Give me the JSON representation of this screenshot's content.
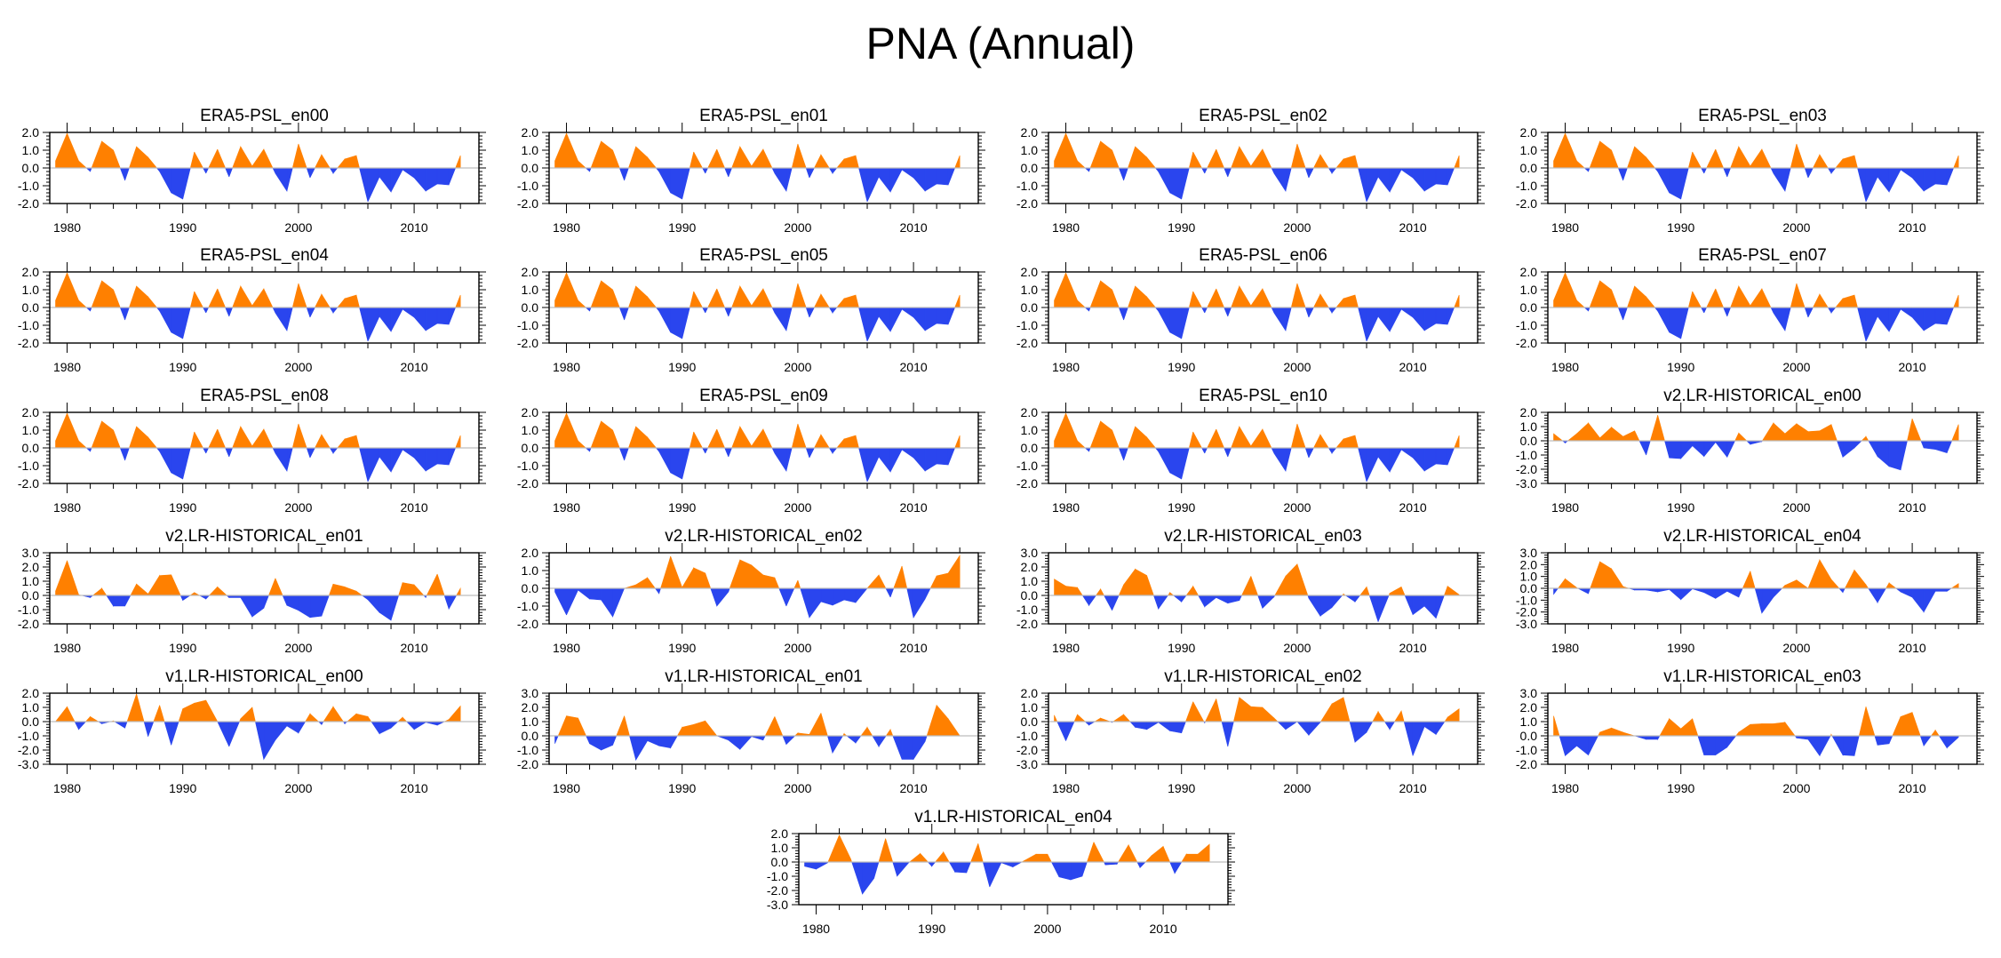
{
  "title": "PNA (Annual)",
  "colors": {
    "positive": "#ff8000",
    "negative": "#2a45ee",
    "zero_line": "#bdbdbd",
    "axis": "#000000"
  },
  "chart_data": {
    "type": "area",
    "title": "PNA (Annual)",
    "years": [
      1979,
      1980,
      1981,
      1982,
      1983,
      1984,
      1985,
      1986,
      1987,
      1988,
      1989,
      1990,
      1991,
      1992,
      1993,
      1994,
      1995,
      1996,
      1997,
      1998,
      1999,
      2000,
      2001,
      2002,
      2003,
      2004,
      2005,
      2006,
      2007,
      2008,
      2009,
      2010,
      2011,
      2012,
      2013,
      2014
    ],
    "xlim": [
      1978.5,
      2015.6
    ],
    "x_ticks": [
      1980,
      1990,
      2000,
      2010
    ],
    "x_tick_labels": [
      "1980",
      "1990",
      "2000",
      "2010"
    ],
    "xlabel": "",
    "ylabel": "",
    "grid": false,
    "fill_rule": "above zero orange, below zero blue",
    "panels": [
      {
        "name": "ERA5-PSL_en00",
        "ylim": [
          -2,
          2
        ],
        "y_ticks": [
          "2.0",
          "1.0",
          "0.0",
          "-1.0",
          "-2.0"
        ],
        "values": [
          0.4,
          1.95,
          0.4,
          -0.2,
          1.5,
          1.0,
          -0.7,
          1.2,
          0.6,
          -0.2,
          -1.4,
          -1.75,
          0.9,
          -0.3,
          1.05,
          -0.5,
          1.2,
          0.1,
          1.05,
          -0.3,
          -1.3,
          1.35,
          -0.55,
          0.75,
          -0.3,
          0.5,
          0.7,
          -1.9,
          -0.5,
          -1.35,
          -0.1,
          -0.55,
          -1.3,
          -0.9,
          -0.95,
          0.7
        ]
      },
      {
        "name": "ERA5-PSL_en01",
        "ylim": [
          -2,
          2
        ],
        "y_ticks": [
          "2.0",
          "1.0",
          "0.0",
          "-1.0",
          "-2.0"
        ],
        "values": [
          0.4,
          1.95,
          0.4,
          -0.2,
          1.5,
          1.0,
          -0.7,
          1.2,
          0.6,
          -0.2,
          -1.4,
          -1.75,
          0.9,
          -0.3,
          1.05,
          -0.5,
          1.2,
          0.1,
          1.05,
          -0.3,
          -1.3,
          1.35,
          -0.55,
          0.75,
          -0.3,
          0.5,
          0.7,
          -1.9,
          -0.5,
          -1.35,
          -0.1,
          -0.55,
          -1.3,
          -0.9,
          -0.95,
          0.7
        ]
      },
      {
        "name": "ERA5-PSL_en02",
        "ylim": [
          -2,
          2
        ],
        "y_ticks": [
          "2.0",
          "1.0",
          "0.0",
          "-1.0",
          "-2.0"
        ],
        "values": [
          0.4,
          1.95,
          0.4,
          -0.2,
          1.5,
          1.0,
          -0.7,
          1.2,
          0.6,
          -0.2,
          -1.4,
          -1.75,
          0.9,
          -0.3,
          1.05,
          -0.5,
          1.2,
          0.1,
          1.05,
          -0.3,
          -1.3,
          1.35,
          -0.55,
          0.75,
          -0.3,
          0.5,
          0.7,
          -1.9,
          -0.5,
          -1.35,
          -0.1,
          -0.55,
          -1.3,
          -0.9,
          -0.95,
          0.7
        ]
      },
      {
        "name": "ERA5-PSL_en03",
        "ylim": [
          -2,
          2
        ],
        "y_ticks": [
          "2.0",
          "1.0",
          "0.0",
          "-1.0",
          "-2.0"
        ],
        "values": [
          0.4,
          1.95,
          0.4,
          -0.2,
          1.5,
          1.0,
          -0.7,
          1.2,
          0.6,
          -0.2,
          -1.4,
          -1.75,
          0.9,
          -0.3,
          1.05,
          -0.5,
          1.2,
          0.1,
          1.05,
          -0.3,
          -1.3,
          1.35,
          -0.55,
          0.75,
          -0.3,
          0.5,
          0.7,
          -1.9,
          -0.5,
          -1.35,
          -0.1,
          -0.55,
          -1.3,
          -0.9,
          -0.95,
          0.7
        ]
      },
      {
        "name": "ERA5-PSL_en04",
        "ylim": [
          -2,
          2
        ],
        "y_ticks": [
          "2.0",
          "1.0",
          "0.0",
          "-1.0",
          "-2.0"
        ],
        "values": [
          0.4,
          1.95,
          0.4,
          -0.2,
          1.5,
          1.0,
          -0.7,
          1.2,
          0.6,
          -0.2,
          -1.4,
          -1.75,
          0.9,
          -0.3,
          1.05,
          -0.5,
          1.2,
          0.1,
          1.05,
          -0.3,
          -1.3,
          1.35,
          -0.55,
          0.75,
          -0.3,
          0.5,
          0.7,
          -1.9,
          -0.5,
          -1.35,
          -0.1,
          -0.55,
          -1.3,
          -0.9,
          -0.95,
          0.7
        ]
      },
      {
        "name": "ERA5-PSL_en05",
        "ylim": [
          -2,
          2
        ],
        "y_ticks": [
          "2.0",
          "1.0",
          "0.0",
          "-1.0",
          "-2.0"
        ],
        "values": [
          0.4,
          1.95,
          0.4,
          -0.2,
          1.5,
          1.0,
          -0.7,
          1.2,
          0.6,
          -0.2,
          -1.4,
          -1.75,
          0.9,
          -0.3,
          1.05,
          -0.5,
          1.2,
          0.1,
          1.05,
          -0.3,
          -1.3,
          1.35,
          -0.55,
          0.75,
          -0.3,
          0.5,
          0.7,
          -1.9,
          -0.5,
          -1.35,
          -0.1,
          -0.55,
          -1.3,
          -0.9,
          -0.95,
          0.7
        ]
      },
      {
        "name": "ERA5-PSL_en06",
        "ylim": [
          -2,
          2
        ],
        "y_ticks": [
          "2.0",
          "1.0",
          "0.0",
          "-1.0",
          "-2.0"
        ],
        "values": [
          0.4,
          1.95,
          0.4,
          -0.2,
          1.5,
          1.0,
          -0.7,
          1.2,
          0.6,
          -0.2,
          -1.4,
          -1.75,
          0.9,
          -0.3,
          1.05,
          -0.5,
          1.2,
          0.1,
          1.05,
          -0.3,
          -1.3,
          1.35,
          -0.55,
          0.75,
          -0.3,
          0.5,
          0.7,
          -1.9,
          -0.5,
          -1.35,
          -0.1,
          -0.55,
          -1.3,
          -0.9,
          -0.95,
          0.7
        ]
      },
      {
        "name": "ERA5-PSL_en07",
        "ylim": [
          -2,
          2
        ],
        "y_ticks": [
          "2.0",
          "1.0",
          "0.0",
          "-1.0",
          "-2.0"
        ],
        "values": [
          0.4,
          1.95,
          0.4,
          -0.2,
          1.5,
          1.0,
          -0.7,
          1.2,
          0.6,
          -0.2,
          -1.4,
          -1.75,
          0.9,
          -0.3,
          1.05,
          -0.5,
          1.2,
          0.1,
          1.05,
          -0.3,
          -1.3,
          1.35,
          -0.55,
          0.75,
          -0.3,
          0.5,
          0.7,
          -1.9,
          -0.5,
          -1.35,
          -0.1,
          -0.55,
          -1.3,
          -0.9,
          -0.95,
          0.7
        ]
      },
      {
        "name": "ERA5-PSL_en08",
        "ylim": [
          -2,
          2
        ],
        "y_ticks": [
          "2.0",
          "1.0",
          "0.0",
          "-1.0",
          "-2.0"
        ],
        "values": [
          0.4,
          1.95,
          0.4,
          -0.2,
          1.5,
          1.0,
          -0.7,
          1.2,
          0.6,
          -0.2,
          -1.4,
          -1.75,
          0.9,
          -0.3,
          1.05,
          -0.5,
          1.2,
          0.1,
          1.05,
          -0.3,
          -1.3,
          1.35,
          -0.55,
          0.75,
          -0.3,
          0.5,
          0.7,
          -1.9,
          -0.5,
          -1.35,
          -0.1,
          -0.55,
          -1.3,
          -0.9,
          -0.95,
          0.7
        ]
      },
      {
        "name": "ERA5-PSL_en09",
        "ylim": [
          -2,
          2
        ],
        "y_ticks": [
          "2.0",
          "1.0",
          "0.0",
          "-1.0",
          "-2.0"
        ],
        "values": [
          0.4,
          1.95,
          0.4,
          -0.2,
          1.5,
          1.0,
          -0.7,
          1.2,
          0.6,
          -0.2,
          -1.4,
          -1.75,
          0.9,
          -0.3,
          1.05,
          -0.5,
          1.2,
          0.1,
          1.05,
          -0.3,
          -1.3,
          1.35,
          -0.55,
          0.75,
          -0.3,
          0.5,
          0.7,
          -1.9,
          -0.5,
          -1.35,
          -0.1,
          -0.55,
          -1.3,
          -0.9,
          -0.95,
          0.7
        ]
      },
      {
        "name": "ERA5-PSL_en10",
        "ylim": [
          -2,
          2
        ],
        "y_ticks": [
          "2.0",
          "1.0",
          "0.0",
          "-1.0",
          "-2.0"
        ],
        "values": [
          0.4,
          1.95,
          0.4,
          -0.2,
          1.5,
          1.0,
          -0.7,
          1.2,
          0.6,
          -0.2,
          -1.4,
          -1.75,
          0.9,
          -0.3,
          1.05,
          -0.5,
          1.2,
          0.1,
          1.05,
          -0.3,
          -1.3,
          1.35,
          -0.55,
          0.75,
          -0.3,
          0.5,
          0.7,
          -1.9,
          -0.5,
          -1.35,
          -0.1,
          -0.55,
          -1.3,
          -0.9,
          -0.95,
          0.7
        ]
      },
      {
        "name": "v2.LR-HISTORICAL_en00",
        "ylim": [
          -3,
          2
        ],
        "y_ticks": [
          "2.0",
          "1.0",
          "0.0",
          "-1.0",
          "-2.0",
          "-3.0"
        ],
        "values": [
          0.5,
          -0.15,
          0.5,
          1.25,
          0.2,
          0.95,
          0.3,
          0.7,
          -1.0,
          1.8,
          -1.2,
          -1.25,
          -0.35,
          -1.1,
          -0.1,
          -1.15,
          0.55,
          -0.25,
          -0.05,
          1.25,
          0.5,
          1.2,
          0.65,
          0.7,
          1.15,
          -1.15,
          -0.5,
          0.3,
          -1.1,
          -1.8,
          -2.05,
          1.55,
          -0.5,
          -0.6,
          -0.85,
          1.15
        ]
      },
      {
        "name": "v2.LR-HISTORICAL_en01",
        "ylim": [
          -2,
          3
        ],
        "y_ticks": [
          "3.0",
          "2.0",
          "1.0",
          "0.0",
          "-1.0",
          "-2.0"
        ],
        "values": [
          0.3,
          2.45,
          0.05,
          -0.15,
          0.5,
          -0.75,
          -0.75,
          0.8,
          0.1,
          1.4,
          1.45,
          -0.35,
          0.2,
          -0.25,
          0.6,
          -0.15,
          -0.15,
          -1.5,
          -0.9,
          1.2,
          -0.7,
          -1.05,
          -1.55,
          -1.45,
          0.8,
          0.6,
          0.3,
          -0.3,
          -1.2,
          -1.75,
          0.9,
          0.75,
          -0.15,
          1.5,
          -0.95,
          0.5
        ]
      },
      {
        "name": "v2.LR-HISTORICAL_en02",
        "ylim": [
          -2,
          2
        ],
        "y_ticks": [
          "2.0",
          "1.0",
          "0.0",
          "-1.0",
          "-2.0"
        ],
        "values": [
          -0.2,
          -1.5,
          -0.1,
          -0.6,
          -0.65,
          -1.6,
          0.0,
          0.2,
          0.6,
          -0.3,
          1.8,
          0.05,
          1.15,
          0.85,
          -1.0,
          -0.2,
          1.6,
          1.3,
          0.75,
          0.6,
          -1.0,
          0.45,
          -1.65,
          -0.75,
          -0.95,
          -0.65,
          -0.8,
          0.0,
          0.75,
          -0.5,
          1.25,
          -1.65,
          -0.6,
          0.7,
          0.85,
          1.85
        ]
      },
      {
        "name": "v2.LR-HISTORICAL_en03",
        "ylim": [
          -2,
          3
        ],
        "y_ticks": [
          "3.0",
          "2.0",
          "1.0",
          "0.0",
          "-1.0",
          "-2.0"
        ],
        "values": [
          1.15,
          0.65,
          0.55,
          -0.7,
          0.45,
          -1.05,
          0.75,
          1.85,
          1.4,
          -0.95,
          0.2,
          -0.45,
          0.65,
          -0.8,
          -0.15,
          -0.55,
          -0.35,
          1.35,
          -0.9,
          -0.1,
          1.35,
          2.2,
          -0.2,
          -1.45,
          -0.85,
          0.1,
          -0.45,
          0.6,
          -1.85,
          0.15,
          0.6,
          -1.35,
          -0.75,
          -1.6,
          0.65,
          0.05
        ]
      },
      {
        "name": "v2.LR-HISTORICAL_en04",
        "ylim": [
          -3,
          3
        ],
        "y_ticks": [
          "3.0",
          "2.0",
          "1.0",
          "0.0",
          "-1.0",
          "-2.0",
          "-3.0"
        ],
        "values": [
          -0.5,
          0.8,
          0.05,
          -0.45,
          2.25,
          1.65,
          0.15,
          -0.15,
          -0.15,
          -0.3,
          -0.1,
          -0.95,
          -0.05,
          -0.35,
          -0.85,
          -0.25,
          -0.75,
          1.45,
          -2.1,
          -0.75,
          0.25,
          0.7,
          0.0,
          2.4,
          0.75,
          -0.35,
          1.55,
          0.3,
          -1.2,
          0.45,
          -0.3,
          -0.75,
          -2.0,
          -0.25,
          -0.25,
          0.4
        ]
      },
      {
        "name": "v1.LR-HISTORICAL_en00",
        "ylim": [
          -3,
          2
        ],
        "y_ticks": [
          "2.0",
          "1.0",
          "0.0",
          "-1.0",
          "-2.0",
          "-3.0"
        ],
        "values": [
          0.0,
          1.05,
          -0.55,
          0.35,
          -0.15,
          0.05,
          -0.45,
          1.95,
          -1.05,
          1.15,
          -1.65,
          0.9,
          1.3,
          1.5,
          0.0,
          -1.75,
          0.2,
          1.0,
          -2.65,
          -1.3,
          -0.3,
          -0.8,
          0.55,
          -0.2,
          1.05,
          -0.15,
          0.55,
          0.35,
          -0.85,
          -0.45,
          0.3,
          -0.55,
          -0.05,
          -0.25,
          0.15,
          1.1
        ]
      },
      {
        "name": "v1.LR-HISTORICAL_en01",
        "ylim": [
          -2,
          3
        ],
        "y_ticks": [
          "3.0",
          "2.0",
          "1.0",
          "0.0",
          "-1.0",
          "-2.0"
        ],
        "values": [
          -0.55,
          1.4,
          1.25,
          -0.55,
          -1.0,
          -0.65,
          1.4,
          -1.7,
          -0.35,
          -0.7,
          -0.85,
          0.6,
          0.8,
          1.05,
          0.0,
          -0.3,
          -0.95,
          -0.05,
          -0.3,
          1.35,
          -0.6,
          0.2,
          0.1,
          1.6,
          -1.2,
          0.15,
          -0.5,
          0.6,
          -0.75,
          0.45,
          -1.65,
          -1.65,
          -0.4,
          2.15,
          1.2,
          0.0
        ]
      },
      {
        "name": "v1.LR-HISTORICAL_en02",
        "ylim": [
          -3,
          2
        ],
        "y_ticks": [
          "2.0",
          "1.0",
          "0.0",
          "-1.0",
          "-2.0",
          "-3.0"
        ],
        "values": [
          0.45,
          -1.35,
          0.5,
          -0.25,
          0.25,
          -0.05,
          0.5,
          -0.4,
          -0.55,
          -0.05,
          -0.65,
          -0.8,
          1.4,
          -0.1,
          1.6,
          -1.75,
          1.7,
          1.05,
          1.0,
          0.25,
          -0.55,
          0.0,
          -0.95,
          -0.05,
          1.25,
          1.7,
          -1.45,
          -0.75,
          0.7,
          -0.55,
          0.75,
          -2.4,
          -0.35,
          -0.9,
          0.3,
          0.9
        ]
      },
      {
        "name": "v1.LR-HISTORICAL_en03",
        "ylim": [
          -2,
          3
        ],
        "y_ticks": [
          "3.0",
          "2.0",
          "1.0",
          "0.0",
          "-1.0",
          "-2.0"
        ],
        "values": [
          1.4,
          -1.4,
          -0.7,
          -1.35,
          0.25,
          0.55,
          0.25,
          0.0,
          -0.25,
          -0.25,
          1.2,
          0.5,
          1.2,
          -1.35,
          -1.35,
          -0.8,
          0.25,
          0.8,
          0.85,
          0.85,
          0.95,
          -0.15,
          -0.25,
          -1.4,
          0.1,
          -1.35,
          -1.4,
          2.05,
          -0.65,
          -0.55,
          1.35,
          1.65,
          -0.7,
          0.4,
          -0.85,
          -0.1
        ]
      },
      {
        "name": "v1.LR-HISTORICAL_en04",
        "ylim": [
          -3,
          2
        ],
        "y_ticks": [
          "2.0",
          "1.0",
          "0.0",
          "-1.0",
          "-2.0",
          "-3.0"
        ],
        "values": [
          -0.3,
          -0.5,
          -0.05,
          1.9,
          0.2,
          -2.25,
          -1.15,
          1.65,
          -1.0,
          -0.05,
          0.6,
          -0.3,
          0.7,
          -0.7,
          -0.75,
          1.3,
          -1.75,
          -0.05,
          -0.35,
          0.1,
          0.55,
          0.55,
          -1.05,
          -1.25,
          -1.0,
          1.4,
          -0.2,
          -0.15,
          1.2,
          -0.4,
          0.45,
          1.1,
          -0.8,
          0.55,
          0.55,
          1.25
        ]
      }
    ]
  }
}
